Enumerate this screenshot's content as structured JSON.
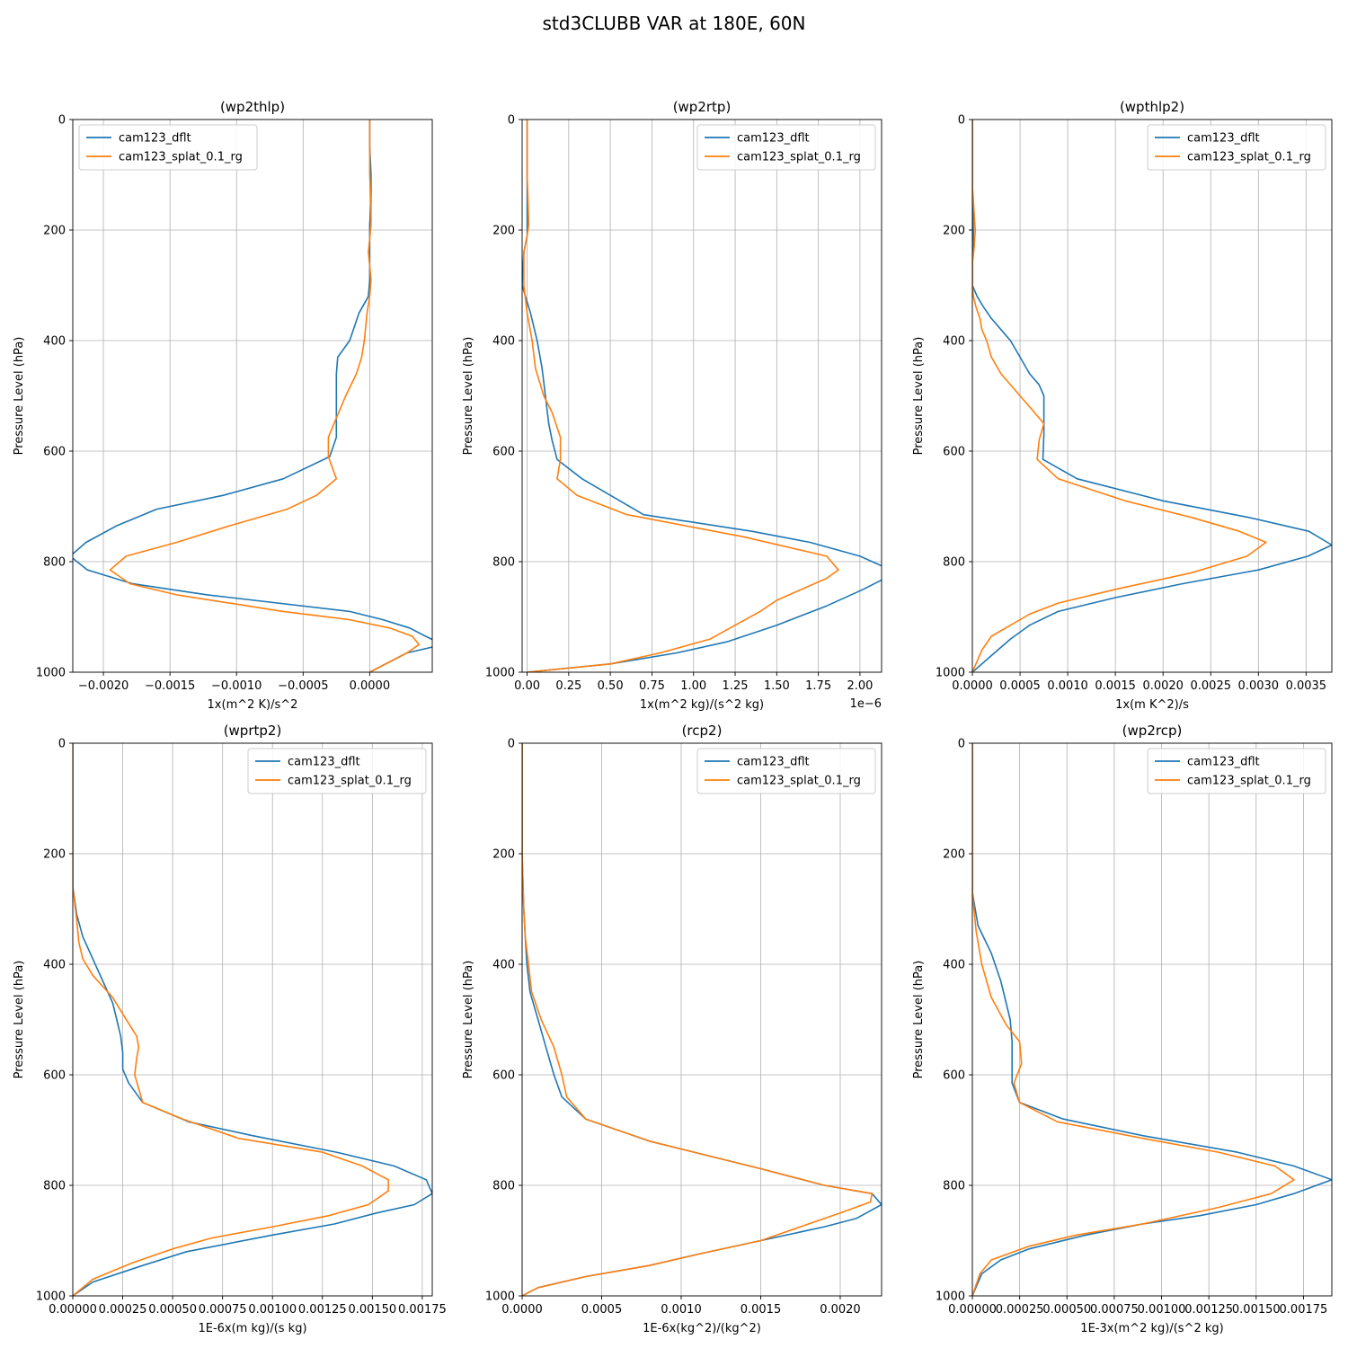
{
  "figure": {
    "suptitle": "std3CLUBB VAR at 180E, 60N"
  },
  "series_styles": [
    {
      "name": "cam123_dflt",
      "color": "#1f77b4"
    },
    {
      "name": "cam123_splat_0.1_rg",
      "color": "#ff7f0e"
    }
  ],
  "chart_data": [
    {
      "type": "line",
      "title": "(wp2thlp)",
      "xlabel": "1x(m^2 K)/s^2",
      "ylabel": "Pressure Level (hPa)",
      "xlim": [
        -0.00223,
        0.00047
      ],
      "ylim": [
        1000,
        0
      ],
      "xticks": [
        -0.002,
        -0.0015,
        -0.001,
        -0.0005,
        0.0
      ],
      "xticklabels": [
        "−0.0020",
        "−0.0015",
        "−0.0010",
        "−0.0005",
        "0.0000"
      ],
      "yticks": [
        0,
        200,
        400,
        600,
        800,
        1000
      ],
      "yticklabels": [
        "0",
        "200",
        "400",
        "600",
        "800",
        "1000"
      ],
      "offset_text": "",
      "legend_loc": "upper left",
      "grid": true,
      "series": [
        {
          "name": "cam123_dflt",
          "x": [
            0.0,
            0.0,
            1e-05,
            1e-05,
            0.0,
            0.0,
            0.0,
            -1e-05,
            -8e-05,
            -0.00015,
            -0.00024,
            -0.00025,
            -0.00025,
            -0.00025,
            -0.00025,
            -0.0003,
            -0.00065,
            -0.0011,
            -0.0016,
            -0.0019,
            -0.00213,
            -0.00225,
            -0.00212,
            -0.00178,
            -0.00122,
            -0.00015,
            0.0001,
            0.0003,
            0.00042,
            0.00055,
            0.00028,
            0.0
          ],
          "y": [
            0,
            50,
            100,
            150,
            190,
            240,
            290,
            320,
            350,
            400,
            430,
            460,
            500,
            540,
            575,
            610,
            650,
            680,
            705,
            735,
            765,
            790,
            815,
            840,
            860,
            890,
            905,
            920,
            935,
            950,
            965,
            1000
          ]
        },
        {
          "name": "cam123_splat_0.1_rg",
          "x": [
            0.0,
            0.0,
            0.0,
            1e-05,
            1e-05,
            -1e-05,
            1e-05,
            0.0,
            -2e-05,
            -4e-05,
            -6e-05,
            -0.0001,
            -0.00018,
            -0.00025,
            -0.00031,
            -0.00031,
            -0.00025,
            -0.0004,
            -0.00062,
            -0.00105,
            -0.00145,
            -0.00183,
            -0.00195,
            -0.0018,
            -0.00145,
            -0.00065,
            -0.00015,
            0.00015,
            0.00032,
            0.00037,
            0.00028,
            0.0
          ],
          "y": [
            0,
            50,
            100,
            150,
            190,
            240,
            290,
            320,
            350,
            400,
            430,
            460,
            500,
            540,
            575,
            610,
            650,
            680,
            705,
            735,
            765,
            790,
            815,
            840,
            860,
            890,
            905,
            920,
            935,
            950,
            965,
            1000
          ]
        }
      ]
    },
    {
      "type": "line",
      "title": "(wp2rtp)",
      "xlabel": "1x(m^2 kg)/(s^2 kg)",
      "ylabel": "Pressure Level (hPa)",
      "xlim": [
        -0.03,
        2.13
      ],
      "ylim": [
        1000,
        0
      ],
      "xticks": [
        0.0,
        0.25,
        0.5,
        0.75,
        1.0,
        1.25,
        1.5,
        1.75,
        2.0
      ],
      "xticklabels": [
        "0.00",
        "0.25",
        "0.50",
        "0.75",
        "1.00",
        "1.25",
        "1.50",
        "1.75",
        "2.00"
      ],
      "yticks": [
        0,
        200,
        400,
        600,
        800,
        1000
      ],
      "yticklabels": [
        "0",
        "200",
        "400",
        "600",
        "800",
        "1000"
      ],
      "offset_text": "1e−6",
      "legend_loc": "upper right",
      "grid": true,
      "series": [
        {
          "name": "cam123_dflt",
          "x": [
            0.0,
            0.0,
            0.0,
            0.0,
            -0.02,
            -0.03,
            0.02,
            0.06,
            0.09,
            0.11,
            0.13,
            0.15,
            0.18,
            0.33,
            0.7,
            1.35,
            1.7,
            2.0,
            2.15,
            2.15,
            2.02,
            1.8,
            1.5,
            1.2,
            0.9,
            0.5,
            0.0
          ],
          "y": [
            0,
            100,
            190,
            210,
            240,
            300,
            350,
            400,
            450,
            500,
            550,
            580,
            615,
            650,
            715,
            745,
            765,
            790,
            810,
            830,
            850,
            880,
            915,
            945,
            965,
            985,
            1000
          ]
        },
        {
          "name": "cam123_splat_0.1_rg",
          "x": [
            0.0,
            0.0,
            0.01,
            0.0,
            -0.02,
            -0.02,
            0.0,
            0.03,
            0.05,
            0.1,
            0.15,
            0.2,
            0.2,
            0.18,
            0.3,
            0.6,
            1.3,
            1.8,
            1.87,
            1.8,
            1.5,
            1.4,
            1.25,
            1.1,
            0.8,
            0.5,
            0.0
          ],
          "y": [
            0,
            100,
            190,
            210,
            240,
            300,
            350,
            400,
            450,
            500,
            530,
            575,
            615,
            650,
            680,
            715,
            755,
            790,
            815,
            830,
            870,
            890,
            915,
            940,
            965,
            985,
            1000
          ]
        }
      ]
    },
    {
      "type": "line",
      "title": "(wpthlp2)",
      "xlabel": "1x(m K^2)/s",
      "ylabel": "Pressure Level (hPa)",
      "xlim": [
        0.0,
        0.00377
      ],
      "ylim": [
        1000,
        0
      ],
      "xticks": [
        0.0,
        0.0005,
        0.001,
        0.0015,
        0.002,
        0.0025,
        0.003,
        0.0035
      ],
      "xticklabels": [
        "0.0000",
        "0.0005",
        "0.0010",
        "0.0015",
        "0.0020",
        "0.0025",
        "0.0030",
        "0.0035"
      ],
      "yticks": [
        0,
        200,
        400,
        600,
        800,
        1000
      ],
      "yticklabels": [
        "0",
        "200",
        "400",
        "600",
        "800",
        "1000"
      ],
      "offset_text": "",
      "legend_loc": "upper right",
      "grid": true,
      "series": [
        {
          "name": "cam123_dflt",
          "x": [
            0.0,
            0.0,
            1e-05,
            1e-05,
            0.0,
            0.0,
            5e-05,
            0.00012,
            0.0002,
            0.0003,
            0.0004,
            0.0005,
            0.0006,
            0.0007,
            0.00075,
            0.00075,
            0.00075,
            0.00074,
            0.0011,
            0.002,
            0.0029,
            0.00353,
            0.00377,
            0.00352,
            0.003,
            0.0022,
            0.0015,
            0.0009,
            0.0006,
            0.0004,
            0.0002,
            0.0
          ],
          "y": [
            0,
            120,
            200,
            230,
            260,
            300,
            320,
            340,
            360,
            380,
            400,
            430,
            460,
            480,
            500,
            530,
            570,
            615,
            650,
            690,
            720,
            745,
            770,
            790,
            815,
            840,
            865,
            890,
            915,
            940,
            970,
            1000
          ]
        },
        {
          "name": "cam123_splat_0.1_rg",
          "x": [
            0.0,
            0.0,
            3e-05,
            2e-05,
            0.0,
            0.0,
            1e-05,
            4e-05,
            8e-05,
            0.0001,
            0.00015,
            0.0002,
            0.0003,
            0.0005,
            0.00065,
            0.00075,
            0.0007,
            0.00068,
            0.0009,
            0.0016,
            0.0023,
            0.0028,
            0.00308,
            0.00288,
            0.0023,
            0.0015,
            0.0009,
            0.0006,
            0.0004,
            0.0002,
            0.0001,
            0.0
          ],
          "y": [
            0,
            120,
            200,
            230,
            260,
            300,
            320,
            340,
            360,
            380,
            400,
            430,
            460,
            500,
            530,
            550,
            580,
            615,
            650,
            690,
            720,
            745,
            765,
            790,
            820,
            850,
            875,
            895,
            915,
            935,
            960,
            1000
          ]
        }
      ]
    },
    {
      "type": "line",
      "title": "(wprtp2)",
      "xlabel": "1E-6x(m kg)/(s kg)",
      "ylabel": "Pressure Level (hPa)",
      "xlim": [
        0.0,
        0.0018
      ],
      "ylim": [
        1000,
        0
      ],
      "xticks": [
        0.0,
        0.00025,
        0.0005,
        0.00075,
        0.001,
        0.00125,
        0.0015,
        0.00175
      ],
      "xticklabels": [
        "0.00000",
        "0.00025",
        "0.00050",
        "0.00075",
        "0.00100",
        "0.00125",
        "0.00150",
        "0.00175"
      ],
      "yticks": [
        0,
        200,
        400,
        600,
        800,
        1000
      ],
      "yticklabels": [
        "0",
        "200",
        "400",
        "600",
        "800",
        "1000"
      ],
      "offset_text": "",
      "legend_loc": "upper right",
      "grid": true,
      "series": [
        {
          "name": "cam123_dflt",
          "x": [
            0.0,
            0.0,
            0.0,
            0.0,
            2e-05,
            5e-05,
            0.0001,
            0.00015,
            0.0002,
            0.00022,
            0.00024,
            0.00025,
            0.00025,
            0.00028,
            0.00035,
            0.00058,
            0.0009,
            0.00132,
            0.00161,
            0.00177,
            0.0018,
            0.00171,
            0.00152,
            0.00131,
            0.001,
            0.00057,
            0.00035,
            0.0001,
            0.0
          ],
          "y": [
            0,
            100,
            200,
            260,
            310,
            350,
            390,
            430,
            470,
            500,
            530,
            560,
            590,
            615,
            650,
            685,
            710,
            740,
            765,
            790,
            815,
            835,
            850,
            870,
            890,
            920,
            945,
            975,
            1000
          ]
        },
        {
          "name": "cam123_splat_0.1_rg",
          "x": [
            0.0,
            0.0,
            0.0,
            0.0,
            2e-05,
            3e-05,
            5e-05,
            0.0001,
            0.0002,
            0.00025,
            0.00032,
            0.00033,
            0.00032,
            0.00031,
            0.00035,
            0.00055,
            0.00083,
            0.00125,
            0.00145,
            0.00158,
            0.00158,
            0.00148,
            0.00128,
            0.001,
            0.0007,
            0.0005,
            0.0003,
            0.0001,
            0.0
          ],
          "y": [
            0,
            100,
            200,
            260,
            320,
            360,
            390,
            420,
            460,
            490,
            530,
            550,
            570,
            600,
            650,
            680,
            715,
            740,
            765,
            790,
            810,
            835,
            855,
            875,
            895,
            915,
            940,
            970,
            1000
          ]
        }
      ]
    },
    {
      "type": "line",
      "title": "(rcp2)",
      "xlabel": "1E-6x(kg^2)/(kg^2)",
      "ylabel": "Pressure Level (hPa)",
      "xlim": [
        0.0,
        0.00226
      ],
      "ylim": [
        1000,
        0
      ],
      "xticks": [
        0.0,
        0.0005,
        0.001,
        0.0015,
        0.002
      ],
      "xticklabels": [
        "0.0000",
        "0.0005",
        "0.0010",
        "0.0015",
        "0.0020"
      ],
      "yticks": [
        0,
        200,
        400,
        600,
        800,
        1000
      ],
      "yticklabels": [
        "0",
        "200",
        "400",
        "600",
        "800",
        "1000"
      ],
      "offset_text": "",
      "legend_loc": "upper right",
      "grid": true,
      "series": [
        {
          "name": "cam123_dflt",
          "x": [
            0.0,
            0.0,
            1e-05,
            2e-05,
            3e-05,
            5e-05,
            0.0001,
            0.00015,
            0.0002,
            0.00025,
            0.0004,
            0.0008,
            0.0015,
            0.0019,
            0.0022,
            0.00226,
            0.0021,
            0.0019,
            0.0015,
            0.0011,
            0.0008,
            0.0004,
            0.0001,
            0.0
          ],
          "y": [
            0,
            200,
            300,
            350,
            400,
            450,
            500,
            550,
            600,
            640,
            680,
            720,
            770,
            800,
            815,
            835,
            860,
            875,
            900,
            925,
            945,
            965,
            985,
            1000
          ]
        },
        {
          "name": "cam123_splat_0.1_rg",
          "x": [
            0.0,
            0.0,
            1e-05,
            2e-05,
            4e-05,
            6e-05,
            0.00012,
            0.0002,
            0.00025,
            0.00028,
            0.0004,
            0.0008,
            0.0015,
            0.0019,
            0.0022,
            0.00219,
            0.002,
            0.0018,
            0.0015,
            0.0011,
            0.0008,
            0.0004,
            0.0001,
            0.0
          ],
          "y": [
            0,
            200,
            300,
            350,
            400,
            450,
            500,
            550,
            600,
            640,
            680,
            720,
            770,
            800,
            815,
            830,
            850,
            870,
            900,
            925,
            945,
            965,
            985,
            1000
          ]
        }
      ]
    },
    {
      "type": "line",
      "title": "(wp2rcp)",
      "xlabel": "1E-3x(m^2 kg)/(s^2 kg)",
      "ylabel": "Pressure Level (hPa)",
      "xlim": [
        0.0,
        0.0019
      ],
      "ylim": [
        1000,
        0
      ],
      "xticks": [
        0.0,
        0.00025,
        0.0005,
        0.00075,
        0.001,
        0.00125,
        0.0015,
        0.00175
      ],
      "xticklabels": [
        "0.00000",
        "0.00025",
        "0.00050",
        "0.00075",
        "0.00100",
        "0.00125",
        "0.00150",
        "0.00175"
      ],
      "yticks": [
        0,
        200,
        400,
        600,
        800,
        1000
      ],
      "yticklabels": [
        "0",
        "200",
        "400",
        "600",
        "800",
        "1000"
      ],
      "offset_text": "",
      "legend_loc": "upper right",
      "grid": true,
      "series": [
        {
          "name": "cam123_dflt",
          "x": [
            0.0,
            0.0,
            0.0,
            3e-05,
            0.0001,
            0.00015,
            0.0002,
            0.00021,
            0.00021,
            0.00021,
            0.00025,
            0.00048,
            0.0009,
            0.0014,
            0.0017,
            0.0019,
            0.0017,
            0.0015,
            0.0012,
            0.0009,
            0.0006,
            0.0003,
            0.00015,
            5e-05,
            0.0
          ],
          "y": [
            0,
            200,
            270,
            330,
            380,
            430,
            500,
            540,
            580,
            615,
            650,
            680,
            710,
            740,
            765,
            790,
            815,
            835,
            855,
            870,
            890,
            915,
            935,
            960,
            1000
          ]
        },
        {
          "name": "cam123_splat_0.1_rg",
          "x": [
            0.0,
            0.0,
            0.0,
            2e-05,
            5e-05,
            0.0001,
            0.00018,
            0.00025,
            0.00026,
            0.00022,
            0.00025,
            0.00045,
            0.0009,
            0.0013,
            0.0016,
            0.0017,
            0.00158,
            0.0013,
            0.0009,
            0.00055,
            0.0003,
            0.0001,
            4e-05,
            0.0
          ],
          "y": [
            0,
            200,
            270,
            340,
            400,
            460,
            510,
            540,
            580,
            615,
            650,
            685,
            715,
            740,
            765,
            790,
            815,
            840,
            870,
            890,
            910,
            935,
            960,
            1000
          ]
        }
      ]
    }
  ]
}
